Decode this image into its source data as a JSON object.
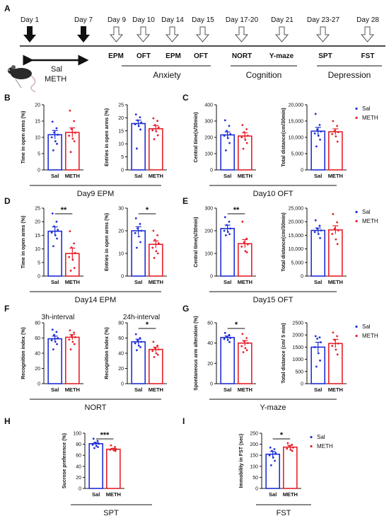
{
  "figure": {
    "timeline": {
      "panel_letter": "A",
      "days": [
        {
          "label": "Day 1",
          "marker": "solid-arrow"
        },
        {
          "label": "Day 7",
          "marker": "solid-arrow"
        },
        {
          "label": "Day 9",
          "marker": "hollow-arrow"
        },
        {
          "label": "Day 10",
          "marker": "hollow-arrow"
        },
        {
          "label": "Day 14",
          "marker": "hollow-arrow"
        },
        {
          "label": "Day 15",
          "marker": "hollow-arrow"
        },
        {
          "label": "Day 17-20",
          "marker": "hollow-arrow"
        },
        {
          "label": "Day 21",
          "marker": "hollow-arrow"
        },
        {
          "label": "Day 23-27",
          "marker": "hollow-arrow"
        },
        {
          "label": "Day 28",
          "marker": "hollow-arrow"
        }
      ],
      "tests": [
        "EPM",
        "OFT",
        "EPM",
        "OFT",
        "NORT",
        "Y-maze",
        "SPT",
        "FST"
      ],
      "categories": [
        "Anxiety",
        "Cognition",
        "Depression"
      ],
      "treatment_line1": "Sal",
      "treatment_line2": "METH",
      "mouse_icon": "mouse-icon"
    },
    "panel_letters": [
      "B",
      "C",
      "D",
      "E",
      "F",
      "G",
      "H",
      "I"
    ],
    "group_titles": [
      "Day9 EPM",
      "Day10 OFT",
      "Day14 EPM",
      "Day15 OFT",
      "NORT",
      "Y-maze",
      "SPT",
      "FST"
    ],
    "legend": [
      "Sal",
      "METH"
    ],
    "colors": {
      "sal": "#1f2fd6",
      "meth": "#e8202a",
      "text": "#111111"
    }
  },
  "chart_data": [
    {
      "type": "bar",
      "panel": "B",
      "ylabel": "Time in open arms (%)",
      "ylim": [
        0,
        20
      ],
      "yticks": [
        "0",
        "5",
        "10",
        "15",
        "20"
      ],
      "categories": [
        "Sal",
        "METH"
      ],
      "values": [
        10.8,
        11.5
      ],
      "errors": [
        1.3,
        1.4
      ],
      "points": [
        [
          14.8,
          12.8,
          11.5,
          10.8,
          10.0,
          8.8,
          8.0,
          6.0
        ],
        [
          18.2,
          15.0,
          12.5,
          11.4,
          10.5,
          9.6,
          8.8,
          5.5
        ]
      ]
    },
    {
      "type": "bar",
      "panel": "B",
      "ylabel": "Entries in open arms (%)",
      "ylim": [
        0,
        25
      ],
      "yticks": [
        "0",
        "5",
        "10",
        "15",
        "20",
        "25"
      ],
      "categories": [
        "Sal",
        "METH"
      ],
      "values": [
        17.8,
        15.8
      ],
      "errors": [
        1.3,
        1.2
      ],
      "points": [
        [
          21.3,
          20.2,
          19.0,
          18.2,
          17.5,
          16.8,
          15.5,
          8.2
        ],
        [
          19.8,
          18.8,
          17.2,
          16.3,
          15.2,
          14.8,
          13.3,
          11.8
        ]
      ]
    },
    {
      "type": "bar",
      "panel": "C",
      "ylabel": "Central time(s/30min)",
      "ylim": [
        0,
        400
      ],
      "yticks": [
        "0",
        "100",
        "200",
        "300",
        "400"
      ],
      "categories": [
        "Sal",
        "METH"
      ],
      "values": [
        215,
        208
      ],
      "errors": [
        18,
        20
      ],
      "points": [
        [
          305,
          270,
          240,
          220,
          210,
          195,
          165,
          120
        ],
        [
          275,
          250,
          232,
          210,
          200,
          185,
          165,
          130
        ]
      ]
    },
    {
      "type": "bar",
      "panel": "C",
      "ylabel": "Total distance(cm/30min)",
      "ylim": [
        0,
        20000
      ],
      "yticks": [
        "0",
        "5,000",
        "10,000",
        "15,000",
        "20,000"
      ],
      "categories": [
        "Sal",
        "METH"
      ],
      "values": [
        11900,
        11700
      ],
      "errors": [
        1150,
        900
      ],
      "points": [
        [
          17200,
          13800,
          12400,
          11800,
          11200,
          10500,
          9300,
          7200
        ],
        [
          15000,
          13500,
          12000,
          11600,
          11000,
          10300,
          8700
        ]
      ],
      "legend": "top-right"
    },
    {
      "type": "bar",
      "panel": "D",
      "ylabel": "Time in open arms (%)",
      "ylim": [
        0,
        25
      ],
      "yticks": [
        "0",
        "5",
        "10",
        "15",
        "20",
        "25"
      ],
      "categories": [
        "Sal",
        "METH"
      ],
      "values": [
        16.5,
        8.3
      ],
      "errors": [
        1.6,
        2.0
      ],
      "points": [
        [
          23.0,
          20.0,
          18.3,
          17.0,
          16.0,
          15.0,
          13.8,
          11.0
        ],
        [
          16.5,
          12.0,
          10.5,
          8.5,
          7.0,
          6.0,
          3.0,
          2.0
        ]
      ],
      "significance": "**"
    },
    {
      "type": "bar",
      "panel": "D",
      "ylabel": "Entries in open arms (%)",
      "ylim": [
        0,
        30
      ],
      "yticks": [
        "0",
        "10",
        "20",
        "30"
      ],
      "categories": [
        "Sal",
        "METH"
      ],
      "values": [
        20.0,
        14.0
      ],
      "errors": [
        1.8,
        1.5
      ],
      "points": [
        [
          25.5,
          23.0,
          21.0,
          20.0,
          19.0,
          17.5,
          15.0,
          12.5
        ],
        [
          20.0,
          18.0,
          16.0,
          14.5,
          12.5,
          11.0,
          10.0,
          8.0
        ]
      ],
      "significance": "*"
    },
    {
      "type": "bar",
      "panel": "E",
      "ylabel": "Central time(s/30min)",
      "ylim": [
        0,
        300
      ],
      "yticks": [
        "0",
        "100",
        "200",
        "300"
      ],
      "categories": [
        "Sal",
        "METH"
      ],
      "values": [
        210,
        143
      ],
      "errors": [
        15,
        18
      ],
      "points": [
        [
          260,
          240,
          225,
          210,
          200,
          195,
          185,
          180
        ],
        [
          240,
          165,
          150,
          140,
          130,
          110,
          105
        ]
      ],
      "significance": "**"
    },
    {
      "type": "bar",
      "panel": "E",
      "ylabel": "Total distance(cm/30min)",
      "ylim": [
        0,
        25000
      ],
      "yticks": [
        "0",
        "5,000",
        "10,000",
        "15,000",
        "20,000",
        "25,000"
      ],
      "categories": [
        "Sal",
        "METH"
      ],
      "values": [
        16800,
        17000
      ],
      "errors": [
        900,
        1500
      ],
      "points": [
        [
          20500,
          18500,
          17500,
          16800,
          16200,
          15500,
          14000
        ],
        [
          22800,
          19800,
          17500,
          16800,
          15500,
          13500,
          11800
        ]
      ],
      "legend": "top-right"
    },
    {
      "type": "bar",
      "panel": "F",
      "title": "3h-interval",
      "ylabel": "Recognition index (%)",
      "ylim": [
        0,
        80
      ],
      "yticks": [
        "0",
        "20",
        "40",
        "60",
        "80"
      ],
      "categories": [
        "Sal",
        "METH"
      ],
      "values": [
        59,
        61
      ],
      "errors": [
        3.5,
        3.5
      ],
      "points": [
        [
          71,
          68,
          64,
          60,
          57,
          55,
          52,
          45
        ],
        [
          70,
          67,
          63,
          61,
          58,
          55,
          52,
          45
        ]
      ]
    },
    {
      "type": "bar",
      "panel": "F",
      "title": "24h-interval",
      "ylabel": "Recognition index (%)",
      "ylim": [
        0,
        80
      ],
      "yticks": [
        "0",
        "20",
        "40",
        "60",
        "80"
      ],
      "categories": [
        "Sal",
        "METH"
      ],
      "values": [
        55,
        45
      ],
      "errors": [
        3.5,
        3.0
      ],
      "points": [
        [
          65,
          60,
          57,
          55,
          53,
          50,
          48,
          44
        ],
        [
          55,
          50,
          47,
          45,
          43,
          40,
          38,
          35
        ]
      ],
      "significance": "*"
    },
    {
      "type": "bar",
      "panel": "G",
      "ylabel": "Spontaneous arm alteration (%)",
      "ylim": [
        0,
        60
      ],
      "yticks": [
        "0",
        "20",
        "40",
        "60"
      ],
      "categories": [
        "Sal",
        "METH"
      ],
      "values": [
        45.5,
        40.0
      ],
      "errors": [
        1.5,
        2.5
      ],
      "points": [
        [
          50,
          48,
          46,
          45,
          44,
          43,
          41
        ],
        [
          49,
          45,
          42,
          40,
          37,
          35,
          33,
          31
        ]
      ],
      "significance": "*"
    },
    {
      "type": "bar",
      "panel": "G",
      "ylabel": "Total distance (cm/ 5 min)",
      "ylim": [
        0,
        2500
      ],
      "yticks": [
        "0",
        "500",
        "1000",
        "1500",
        "2000",
        "2500"
      ],
      "categories": [
        "Sal",
        "METH"
      ],
      "values": [
        1500,
        1650
      ],
      "errors": [
        200,
        170
      ],
      "points": [
        [
          1950,
          1900,
          1850,
          1700,
          1500,
          1250,
          950,
          700
        ],
        [
          2100,
          1950,
          1800,
          1650,
          1550,
          1400,
          1200
        ]
      ],
      "legend": "top-right"
    },
    {
      "type": "bar",
      "panel": "H",
      "ylabel": "Sucrose preference (%)",
      "ylim": [
        0,
        100
      ],
      "yticks": [
        "0",
        "20",
        "40",
        "60",
        "80",
        "100"
      ],
      "categories": [
        "Sal",
        "METH"
      ],
      "values": [
        81,
        71
      ],
      "errors": [
        2.0,
        1.5
      ],
      "points": [
        [
          90,
          86,
          83,
          81,
          79,
          77,
          75,
          73
        ],
        [
          78,
          75,
          72,
          71,
          70,
          69,
          68
        ]
      ],
      "significance": "***"
    },
    {
      "type": "bar",
      "panel": "I",
      "ylabel": "Immobility in FST (sec)",
      "ylim": [
        0,
        250
      ],
      "yticks": [
        "0",
        "50",
        "100",
        "150",
        "200",
        "250"
      ],
      "categories": [
        "Sal",
        "METH"
      ],
      "values": [
        155,
        187
      ],
      "errors": [
        12,
        8
      ],
      "points": [
        [
          185,
          178,
          170,
          160,
          150,
          140,
          125,
          105
        ],
        [
          205,
          198,
          190,
          185,
          180,
          175,
          170
        ]
      ],
      "significance": "*",
      "legend": "top-right"
    }
  ]
}
